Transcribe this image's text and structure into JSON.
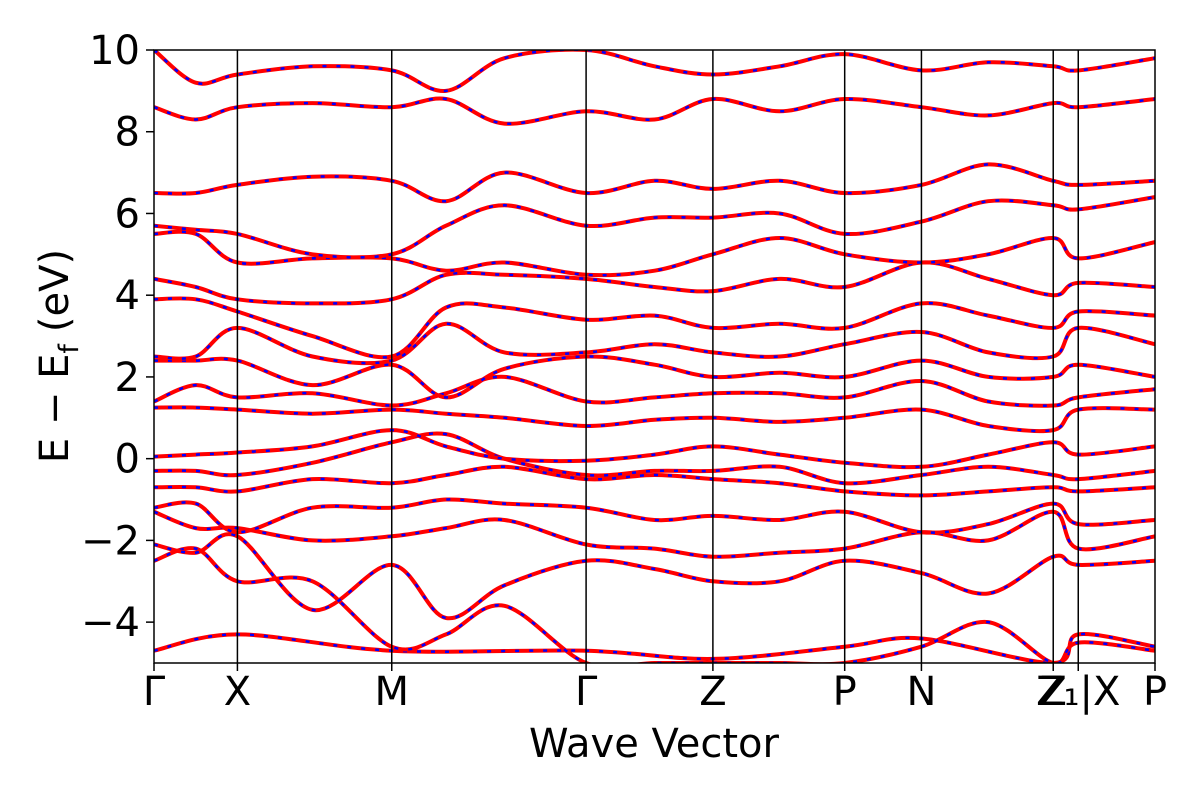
{
  "chart_data": {
    "type": "line",
    "title": "",
    "xlabel": "Wave Vector",
    "ylabel": "E − E_f (eV)",
    "ylabel_main": "E − E",
    "ylabel_sub": "f",
    "ylabel_units": "(eV)",
    "ylim": [
      -5,
      10
    ],
    "xlim": [
      0,
      12
    ],
    "grid": false,
    "legend": "none",
    "y_ticks": [
      -4,
      -2,
      0,
      2,
      4,
      6,
      8,
      10
    ],
    "y_tick_labels": [
      "−4",
      "−2",
      "0",
      "2",
      "4",
      "6",
      "8",
      "10"
    ],
    "kpoint_positions": [
      0,
      1.0,
      2.85,
      5.18,
      6.7,
      8.28,
      9.2,
      10.78,
      11.08,
      12.0
    ],
    "kpoint_labels": [
      "Γ",
      "X",
      "M",
      "Γ",
      "Z",
      "P",
      "N",
      "Z",
      "Z₁|X",
      "P"
    ],
    "colors": {
      "bands_primary": "#ff0000",
      "bands_dashed": "#0000ff",
      "axes": "#000000"
    },
    "series": [
      {
        "x": [
          0,
          1.0,
          2.85,
          5.18,
          6.7,
          8.28,
          9.2,
          10.78,
          11.08,
          12.0
        ],
        "values": [
          -4.7,
          -4.3,
          -4.7,
          -4.7,
          -4.9,
          -4.6,
          -4.4,
          -5.0,
          -4.3,
          -4.6
        ]
      },
      {
        "x": [
          0,
          0.5,
          1.0,
          1.9,
          2.85,
          3.5,
          4.2,
          5.18,
          6.0,
          6.7,
          7.5,
          8.28,
          9.2,
          10.0,
          10.78,
          11.08,
          12.0
        ],
        "values": [
          -2.5,
          -2.2,
          -3.0,
          -3.0,
          -4.6,
          -4.3,
          -3.6,
          -5.0,
          -5.0,
          -5.0,
          -5.0,
          -5.0,
          -4.6,
          -4.0,
          -5.0,
          -4.5,
          -4.7
        ]
      },
      {
        "x": [
          0,
          0.5,
          1.0,
          1.9,
          2.85,
          3.5,
          4.2,
          5.18,
          6.0,
          6.7,
          7.5,
          8.28,
          9.2,
          10.0,
          10.78,
          11.08,
          12.0
        ],
        "values": [
          -2.1,
          -2.3,
          -1.9,
          -3.7,
          -2.6,
          -3.9,
          -3.1,
          -2.5,
          -2.7,
          -3.0,
          -3.0,
          -2.5,
          -2.8,
          -3.3,
          -2.4,
          -2.6,
          -2.5
        ]
      },
      {
        "x": [
          0,
          0.5,
          1.0,
          1.9,
          2.85,
          3.5,
          4.2,
          5.18,
          6.0,
          6.7,
          7.5,
          8.28,
          9.2,
          10.0,
          10.78,
          11.08,
          12.0
        ],
        "values": [
          -1.3,
          -1.7,
          -1.7,
          -2.0,
          -1.9,
          -1.7,
          -1.5,
          -2.1,
          -2.2,
          -2.4,
          -2.3,
          -2.2,
          -1.8,
          -2.0,
          -1.3,
          -2.2,
          -1.9
        ]
      },
      {
        "x": [
          0,
          0.5,
          1.0,
          1.9,
          2.85,
          3.5,
          4.2,
          5.18,
          6.0,
          6.7,
          7.5,
          8.28,
          9.2,
          10.0,
          10.78,
          11.08,
          12.0
        ],
        "values": [
          -1.2,
          -1.1,
          -1.8,
          -1.2,
          -1.2,
          -1.0,
          -1.1,
          -1.2,
          -1.5,
          -1.4,
          -1.5,
          -1.3,
          -1.8,
          -1.6,
          -1.1,
          -1.6,
          -1.5
        ]
      },
      {
        "x": [
          0,
          0.5,
          1.0,
          1.9,
          2.85,
          3.5,
          4.2,
          5.18,
          6.0,
          6.7,
          7.5,
          8.28,
          9.2,
          10.0,
          10.78,
          11.08,
          12.0
        ],
        "values": [
          -0.7,
          -0.7,
          -0.8,
          -0.5,
          -0.6,
          -0.4,
          -0.2,
          -0.5,
          -0.4,
          -0.5,
          -0.6,
          -0.8,
          -0.9,
          -0.8,
          -0.7,
          -0.8,
          -0.7
        ]
      },
      {
        "x": [
          0,
          0.5,
          1.0,
          1.9,
          2.85,
          3.5,
          4.2,
          5.18,
          6.0,
          6.7,
          7.5,
          8.28,
          9.2,
          10.0,
          10.78,
          11.08,
          12.0
        ],
        "values": [
          -0.3,
          -0.3,
          -0.4,
          -0.1,
          0.4,
          0.6,
          0.0,
          -0.4,
          -0.3,
          -0.3,
          -0.2,
          -0.6,
          -0.4,
          -0.2,
          -0.4,
          -0.5,
          -0.3
        ]
      },
      {
        "x": [
          0,
          0.5,
          1.0,
          1.9,
          2.85,
          3.5,
          4.2,
          5.18,
          6.0,
          6.7,
          7.5,
          8.28,
          9.2,
          10.0,
          10.78,
          11.08,
          12.0
        ],
        "values": [
          0.05,
          0.1,
          0.15,
          0.3,
          0.7,
          0.3,
          0.0,
          -0.05,
          0.1,
          0.3,
          0.1,
          -0.1,
          -0.2,
          0.1,
          0.4,
          0.1,
          0.3
        ]
      },
      {
        "x": [
          0,
          0.5,
          1.0,
          1.9,
          2.85,
          3.5,
          4.2,
          5.18,
          6.0,
          6.7,
          7.5,
          8.28,
          9.2,
          10.0,
          10.78,
          11.08,
          12.0
        ],
        "values": [
          1.25,
          1.25,
          1.2,
          1.1,
          1.2,
          1.1,
          1.0,
          0.8,
          0.95,
          1.0,
          0.9,
          1.0,
          1.2,
          0.8,
          0.7,
          1.2,
          1.2
        ]
      },
      {
        "x": [
          0,
          0.5,
          1.0,
          1.9,
          2.85,
          3.5,
          4.2,
          5.18,
          6.0,
          6.7,
          7.5,
          8.28,
          9.2,
          10.0,
          10.78,
          11.08,
          12.0
        ],
        "values": [
          1.4,
          1.8,
          1.5,
          1.6,
          1.3,
          1.6,
          2.0,
          1.4,
          1.5,
          1.6,
          1.6,
          1.5,
          1.9,
          1.4,
          1.3,
          1.5,
          1.7
        ]
      },
      {
        "x": [
          0,
          0.5,
          1.0,
          1.9,
          2.85,
          3.5,
          4.2,
          5.18,
          6.0,
          6.7,
          7.5,
          8.28,
          9.2,
          10.0,
          10.78,
          11.08,
          12.0
        ],
        "values": [
          2.4,
          2.4,
          2.4,
          1.8,
          2.3,
          1.5,
          2.2,
          2.5,
          2.3,
          2.0,
          2.1,
          2.0,
          2.4,
          2.0,
          2.0,
          2.3,
          2.0
        ]
      },
      {
        "x": [
          0,
          0.5,
          1.0,
          1.9,
          2.85,
          3.5,
          4.2,
          5.18,
          6.0,
          6.7,
          7.5,
          8.28,
          9.2,
          10.0,
          10.78,
          11.08,
          12.0
        ],
        "values": [
          2.5,
          2.5,
          3.2,
          2.5,
          2.4,
          3.3,
          2.6,
          2.6,
          2.8,
          2.6,
          2.5,
          2.8,
          3.1,
          2.6,
          2.5,
          3.2,
          2.8
        ]
      },
      {
        "x": [
          0,
          0.5,
          1.0,
          1.9,
          2.85,
          3.5,
          4.2,
          5.18,
          6.0,
          6.7,
          7.5,
          8.28,
          9.2,
          10.0,
          10.78,
          11.08,
          12.0
        ],
        "values": [
          3.9,
          3.9,
          3.6,
          3.0,
          2.5,
          3.7,
          3.7,
          3.4,
          3.5,
          3.2,
          3.3,
          3.2,
          3.8,
          3.5,
          3.2,
          3.6,
          3.5
        ]
      },
      {
        "x": [
          0,
          0.5,
          1.0,
          1.9,
          2.85,
          3.5,
          4.2,
          5.18,
          6.0,
          6.7,
          7.5,
          8.28,
          9.2,
          10.0,
          10.78,
          11.08,
          12.0
        ],
        "values": [
          4.4,
          4.2,
          3.9,
          3.8,
          3.9,
          4.5,
          4.5,
          4.4,
          4.2,
          4.1,
          4.4,
          4.2,
          4.8,
          4.4,
          4.0,
          4.3,
          4.2
        ]
      },
      {
        "x": [
          0,
          0.5,
          1.0,
          1.9,
          2.85,
          3.5,
          4.2,
          5.18,
          6.0,
          6.7,
          7.5,
          8.28,
          9.2,
          10.0,
          10.78,
          11.08,
          12.0
        ],
        "values": [
          5.5,
          5.5,
          4.8,
          4.9,
          4.9,
          4.6,
          4.8,
          4.5,
          4.6,
          5.0,
          5.4,
          5.0,
          4.8,
          5.0,
          5.4,
          4.9,
          5.3
        ]
      },
      {
        "x": [
          0,
          0.5,
          1.0,
          1.9,
          2.85,
          3.5,
          4.2,
          5.18,
          6.0,
          6.7,
          7.5,
          8.28,
          9.2,
          10.0,
          10.78,
          11.08,
          12.0
        ],
        "values": [
          5.7,
          5.6,
          5.5,
          5.0,
          5.0,
          5.7,
          6.2,
          5.7,
          5.9,
          5.9,
          6.0,
          5.5,
          5.8,
          6.3,
          6.2,
          6.1,
          6.4
        ]
      },
      {
        "x": [
          0,
          0.5,
          1.0,
          1.9,
          2.85,
          3.5,
          4.2,
          5.18,
          6.0,
          6.7,
          7.5,
          8.28,
          9.2,
          10.0,
          10.78,
          11.08,
          12.0
        ],
        "values": [
          6.5,
          6.5,
          6.7,
          6.9,
          6.8,
          6.3,
          7.0,
          6.5,
          6.8,
          6.6,
          6.8,
          6.5,
          6.7,
          7.2,
          6.8,
          6.7,
          6.8
        ]
      },
      {
        "x": [
          0,
          0.5,
          1.0,
          1.9,
          2.85,
          3.5,
          4.2,
          5.18,
          6.0,
          6.7,
          7.5,
          8.28,
          9.2,
          10.0,
          10.78,
          11.08,
          12.0
        ],
        "values": [
          8.6,
          8.3,
          8.6,
          8.7,
          8.6,
          8.8,
          8.2,
          8.5,
          8.3,
          8.8,
          8.5,
          8.8,
          8.6,
          8.4,
          8.7,
          8.6,
          8.8
        ]
      },
      {
        "x": [
          0,
          0.5,
          1.0,
          1.9,
          2.85,
          3.5,
          4.2,
          5.18,
          6.0,
          6.7,
          7.5,
          8.28,
          9.2,
          10.0,
          10.78,
          11.08,
          12.0
        ],
        "values": [
          10.0,
          9.2,
          9.4,
          9.6,
          9.5,
          9.0,
          9.8,
          10.0,
          9.6,
          9.4,
          9.6,
          9.9,
          9.5,
          9.7,
          9.6,
          9.5,
          9.8
        ]
      }
    ]
  }
}
